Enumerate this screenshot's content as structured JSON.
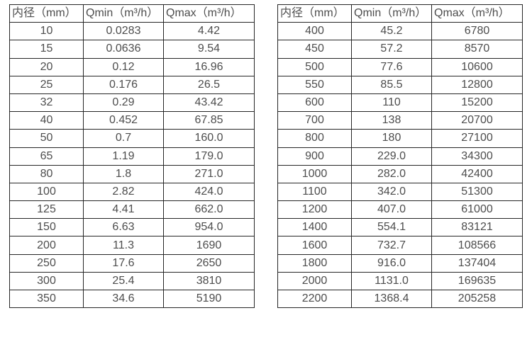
{
  "page": {
    "background": "#ffffff",
    "border_color": "#262626",
    "text_color": "#4d4d4d"
  },
  "tables": [
    {
      "name": "flow-spec-table-small-diameters",
      "columns": [
        "内径（mm）",
        "Qmin（m³/h）",
        "Qmax（m³/h）"
      ],
      "rows": [
        [
          "10",
          "0.0283",
          "4.42"
        ],
        [
          "15",
          "0.0636",
          "9.54"
        ],
        [
          "20",
          "0.12",
          "16.96"
        ],
        [
          "25",
          "0.176",
          "26.5"
        ],
        [
          "32",
          "0.29",
          "43.42"
        ],
        [
          "40",
          "0.452",
          "67.85"
        ],
        [
          "50",
          "0.7",
          "160.0"
        ],
        [
          "65",
          "1.19",
          "179.0"
        ],
        [
          "80",
          "1.8",
          "271.0"
        ],
        [
          "100",
          "2.82",
          "424.0"
        ],
        [
          "125",
          "4.41",
          "662.0"
        ],
        [
          "150",
          "6.63",
          "954.0"
        ],
        [
          "200",
          "11.3",
          "1690"
        ],
        [
          "250",
          "17.6",
          "2650"
        ],
        [
          "300",
          "25.4",
          "3810"
        ],
        [
          "350",
          "34.6",
          "5190"
        ]
      ]
    },
    {
      "name": "flow-spec-table-large-diameters",
      "columns": [
        "内径（mm）",
        "Qmin（m³/h）",
        "Qmax（m³/h）"
      ],
      "rows": [
        [
          "400",
          "45.2",
          "6780"
        ],
        [
          "450",
          "57.2",
          "8570"
        ],
        [
          "500",
          "77.6",
          "10600"
        ],
        [
          "550",
          "85.5",
          "12800"
        ],
        [
          "600",
          "110",
          "15200"
        ],
        [
          "700",
          "138",
          "20700"
        ],
        [
          "800",
          "180",
          "27100"
        ],
        [
          "900",
          "229.0",
          "34300"
        ],
        [
          "1000",
          "282.0",
          "42400"
        ],
        [
          "1100",
          "342.0",
          "51300"
        ],
        [
          "1200",
          "407.0",
          "61000"
        ],
        [
          "1400",
          "554.1",
          "83121"
        ],
        [
          "1600",
          "732.7",
          "108566"
        ],
        [
          "1800",
          "916.0",
          "137404"
        ],
        [
          "2000",
          "1131.0",
          "169635"
        ],
        [
          "2200",
          "1368.4",
          "205258"
        ]
      ]
    }
  ]
}
